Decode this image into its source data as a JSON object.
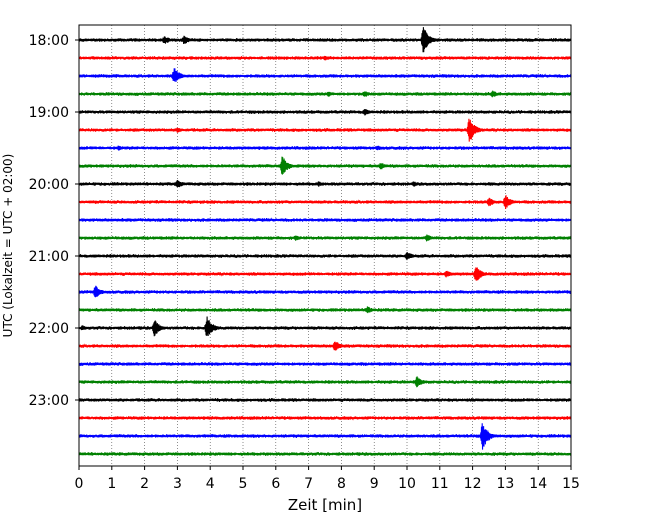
{
  "chart_data": {
    "type": "line",
    "title": "",
    "xlabel": "Zeit  [min]",
    "ylabel": "UTC (Lokalzeit = UTC + 02:00)",
    "xlim": [
      0,
      15
    ],
    "x_ticks": [
      "0",
      "1",
      "2",
      "3",
      "4",
      "5",
      "6",
      "7",
      "8",
      "9",
      "10",
      "11",
      "12",
      "13",
      "14",
      "15"
    ],
    "y_tick_labels": [
      "18:00",
      "19:00",
      "20:00",
      "21:00",
      "22:00",
      "23:00"
    ],
    "rows_per_hour": 4,
    "row_start_times": [
      "18:00",
      "18:15",
      "18:30",
      "18:45",
      "19:00",
      "19:15",
      "19:30",
      "19:45",
      "20:00",
      "20:15",
      "20:30",
      "20:45",
      "21:00",
      "21:15",
      "21:30",
      "21:45",
      "22:00",
      "22:15",
      "22:30",
      "22:45",
      "23:00",
      "23:15",
      "23:30",
      "23:45"
    ],
    "trace_colors": [
      "#000000",
      "#ff0000",
      "#0000ff",
      "#008000"
    ],
    "grid": "vertical dotted lines at each minute",
    "events": [
      {
        "row": 0,
        "minute": 2.6,
        "amplitude": 0.25
      },
      {
        "row": 0,
        "minute": 3.2,
        "amplitude": 0.25
      },
      {
        "row": 0,
        "minute": 10.5,
        "amplitude": 0.75
      },
      {
        "row": 1,
        "minute": 7.5,
        "amplitude": 0.15
      },
      {
        "row": 2,
        "minute": 2.9,
        "amplitude": 0.45
      },
      {
        "row": 3,
        "minute": 7.6,
        "amplitude": 0.15
      },
      {
        "row": 3,
        "minute": 8.7,
        "amplitude": 0.2
      },
      {
        "row": 3,
        "minute": 12.6,
        "amplitude": 0.2
      },
      {
        "row": 4,
        "minute": 8.7,
        "amplitude": 0.2
      },
      {
        "row": 5,
        "minute": 11.9,
        "amplitude": 0.7
      },
      {
        "row": 5,
        "minute": 3.0,
        "amplitude": 0.15
      },
      {
        "row": 6,
        "minute": 1.2,
        "amplitude": 0.15
      },
      {
        "row": 6,
        "minute": 9.1,
        "amplitude": 0.15
      },
      {
        "row": 7,
        "minute": 6.2,
        "amplitude": 0.55
      },
      {
        "row": 7,
        "minute": 9.2,
        "amplitude": 0.2
      },
      {
        "row": 8,
        "minute": 3.0,
        "amplitude": 0.25
      },
      {
        "row": 8,
        "minute": 7.3,
        "amplitude": 0.15
      },
      {
        "row": 8,
        "minute": 10.2,
        "amplitude": 0.15
      },
      {
        "row": 9,
        "minute": 12.5,
        "amplitude": 0.25
      },
      {
        "row": 9,
        "minute": 13.0,
        "amplitude": 0.4
      },
      {
        "row": 11,
        "minute": 6.6,
        "amplitude": 0.15
      },
      {
        "row": 11,
        "minute": 10.6,
        "amplitude": 0.2
      },
      {
        "row": 12,
        "minute": 10.0,
        "amplitude": 0.25
      },
      {
        "row": 13,
        "minute": 11.2,
        "amplitude": 0.2
      },
      {
        "row": 13,
        "minute": 12.1,
        "amplitude": 0.45
      },
      {
        "row": 14,
        "minute": 0.5,
        "amplitude": 0.35
      },
      {
        "row": 15,
        "minute": 8.8,
        "amplitude": 0.2
      },
      {
        "row": 16,
        "minute": 2.3,
        "amplitude": 0.45
      },
      {
        "row": 16,
        "minute": 3.9,
        "amplitude": 0.6
      },
      {
        "row": 16,
        "minute": 0.1,
        "amplitude": 0.15
      },
      {
        "row": 17,
        "minute": 7.8,
        "amplitude": 0.3
      },
      {
        "row": 19,
        "minute": 10.3,
        "amplitude": 0.3
      },
      {
        "row": 22,
        "minute": 12.3,
        "amplitude": 0.75
      }
    ]
  }
}
